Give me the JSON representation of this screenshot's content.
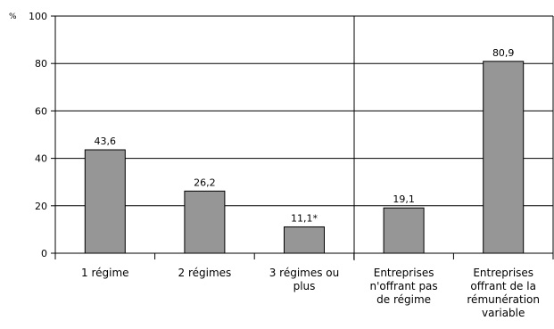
{
  "chart_data": {
    "type": "bar",
    "title": "",
    "xlabel": "",
    "ylabel": "%",
    "ylim": [
      0,
      100
    ],
    "yticks": [
      "0",
      "20",
      "40",
      "60",
      "80",
      "100"
    ],
    "grid": true,
    "categories": [
      "1 régime",
      "2 régimes",
      "3 régimes ou plus",
      "Entreprises n'offrant pas de régime",
      "Entreprises offrant de la rémunération variable"
    ],
    "category_lines": [
      [
        "1 régime"
      ],
      [
        "2 régimes"
      ],
      [
        "3 régimes ou",
        "plus"
      ],
      [
        "Entreprises",
        "n'offrant pas",
        "de régime"
      ],
      [
        "Entreprises",
        "offrant de la",
        "rémunération",
        "variable"
      ]
    ],
    "values": [
      43.6,
      26.2,
      11.1,
      19.1,
      80.9
    ],
    "data_labels": [
      "43,6",
      "26,2",
      "11,1*",
      "19,1",
      "80,9"
    ],
    "bar_color": "#969696",
    "group_separator_after_index": 2
  }
}
